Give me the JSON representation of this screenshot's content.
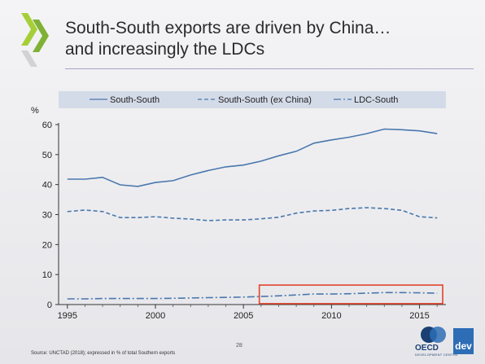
{
  "slide": {
    "title_line1": "South-South exports are driven by China…",
    "title_line2": "and increasingly the LDCs",
    "source": "Source: UNCTAD (2018); expressed in % of total Southern exports",
    "page_number": "28",
    "logo_text": "OECD",
    "logo_dev": "dev",
    "logo_sub": "DEVELOPMENT CENTRE",
    "accent_color": "#8dc63f",
    "highlight_color": "#e2432b"
  },
  "chart_data": {
    "type": "line",
    "title": "",
    "xlabel": "",
    "ylabel": "%",
    "xlim": [
      1994.5,
      2016.5
    ],
    "ylim": [
      0,
      60
    ],
    "xticks": [
      1995,
      2000,
      2005,
      2010,
      2015
    ],
    "yticks": [
      0,
      10,
      20,
      30,
      40,
      50,
      60
    ],
    "grid": false,
    "legend": "top",
    "x": [
      1995,
      1996,
      1997,
      1998,
      1999,
      2000,
      2001,
      2002,
      2003,
      2004,
      2005,
      2006,
      2007,
      2008,
      2009,
      2010,
      2011,
      2012,
      2013,
      2014,
      2015,
      2016
    ],
    "series": [
      {
        "name": "South-South",
        "style": "solid",
        "color": "#4a78ad",
        "values": [
          41.8,
          41.8,
          42.4,
          39.9,
          39.4,
          40.7,
          41.3,
          43.2,
          44.7,
          45.9,
          46.5,
          47.8,
          49.6,
          51.1,
          53.8,
          54.9,
          55.8,
          57.0,
          58.5,
          58.3,
          57.9,
          57.0
        ]
      },
      {
        "name": "South-South (ex China)",
        "style": "dash",
        "color": "#4a78ad",
        "values": [
          31.0,
          31.5,
          31.0,
          29.0,
          29.0,
          29.3,
          28.8,
          28.5,
          28.0,
          28.2,
          28.2,
          28.6,
          29.1,
          30.5,
          31.2,
          31.4,
          32.0,
          32.3,
          32.0,
          31.4,
          29.3,
          28.9
        ]
      },
      {
        "name": "LDC-South",
        "style": "dashdot",
        "color": "#4a78ad",
        "values": [
          1.9,
          1.9,
          2.0,
          2.0,
          2.0,
          2.0,
          2.1,
          2.2,
          2.3,
          2.4,
          2.5,
          2.7,
          2.9,
          3.2,
          3.5,
          3.5,
          3.6,
          3.8,
          4.0,
          4.0,
          3.9,
          3.8
        ]
      }
    ],
    "highlight_box": {
      "x0": 2005.9,
      "x1": 2016.5,
      "y0": 0.3,
      "y1": 6.5
    }
  }
}
